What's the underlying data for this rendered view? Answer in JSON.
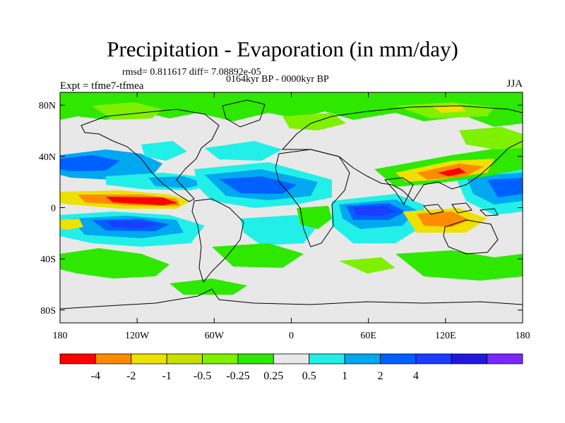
{
  "title": "Precipitation - Evaporation (in mm/day)",
  "stats_line": "rmsd= 0.811617 diff= 7.08892e-05",
  "subtitle": "0164kyr BP - 0000kyr BP",
  "left_label": "Expt = tfme7-tfmea",
  "right_label": "JJA",
  "chart_data": {
    "type": "heatmap",
    "map_projection": "cylindrical-equidistant",
    "region": "global",
    "xlim": [
      -180,
      180
    ],
    "ylim": [
      -90,
      90
    ],
    "x_ticks": [
      {
        "value": -180,
        "label": "180"
      },
      {
        "value": -120,
        "label": "120W"
      },
      {
        "value": -60,
        "label": "60W"
      },
      {
        "value": 0,
        "label": "0"
      },
      {
        "value": 60,
        "label": "60E"
      },
      {
        "value": 120,
        "label": "120E"
      },
      {
        "value": 180,
        "label": "180"
      }
    ],
    "y_ticks": [
      {
        "value": 80,
        "label": "80N"
      },
      {
        "value": 40,
        "label": "40N"
      },
      {
        "value": 0,
        "label": "0"
      },
      {
        "value": -40,
        "label": "40S"
      },
      {
        "value": -80,
        "label": "80S"
      }
    ],
    "colorbar": {
      "levels": [
        -4,
        -2,
        -1,
        -0.5,
        -0.25,
        0.25,
        0.5,
        1,
        2,
        4
      ],
      "labels": [
        "-4",
        "-2",
        "-1",
        "-0.5",
        "-0.25",
        "0.25",
        "0.5",
        "1",
        "2",
        "4"
      ],
      "colors": [
        "#ff0000",
        "#ff8c00",
        "#eee000",
        "#c8e000",
        "#7ef000",
        "#2ee800",
        "#e8e8e8",
        "#22f0e8",
        "#00a8f0",
        "#0060ff",
        "#1c3cff",
        "#2018e0",
        "#7a28ff"
      ]
    },
    "features": [
      {
        "name": "east-pacific-itcz-dry",
        "lon": -115,
        "lat": 7,
        "value": -4
      },
      {
        "name": "tropical-atlantic-wet",
        "lon": -40,
        "lat": 5,
        "value": 2
      },
      {
        "name": "indian-ocean-wet",
        "lon": 65,
        "lat": -2,
        "value": 2
      },
      {
        "name": "south-pacific-wet",
        "lon": -120,
        "lat": -15,
        "value": 2
      },
      {
        "name": "maritime-continent-dry",
        "lon": 115,
        "lat": -10,
        "value": -2
      },
      {
        "name": "east-asia-dry",
        "lon": 120,
        "lat": 25,
        "value": -2
      },
      {
        "name": "south-asia-dry",
        "lon": 85,
        "lat": 20,
        "value": -2
      },
      {
        "name": "north-atlantic-wet",
        "lon": -50,
        "lat": 40,
        "value": 1
      },
      {
        "name": "southern-ocean-dry",
        "lon": -20,
        "lat": -55,
        "value": -0.5
      }
    ]
  }
}
